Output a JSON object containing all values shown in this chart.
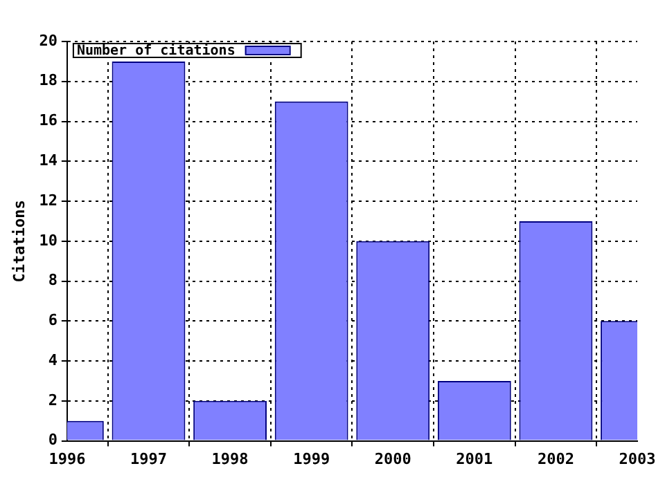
{
  "chart_data": {
    "type": "bar",
    "ylabel": "Citations",
    "x": [
      1996,
      1997,
      1998,
      1999,
      2000,
      2001,
      2002,
      2003
    ],
    "series": [
      {
        "name": "Number of citations",
        "color": "#8080ff",
        "values": [
          1,
          19,
          2,
          17,
          10,
          3,
          11,
          6
        ]
      }
    ],
    "xlim": [
      1996,
      2003
    ],
    "xticks": [
      1996,
      1997,
      1998,
      1999,
      2000,
      2001,
      2002,
      2003
    ],
    "ylim": [
      0,
      20
    ],
    "yticks": [
      0,
      2,
      4,
      6,
      8,
      10,
      12,
      14,
      16,
      18,
      20
    ],
    "grid": true,
    "legend": "top left"
  }
}
